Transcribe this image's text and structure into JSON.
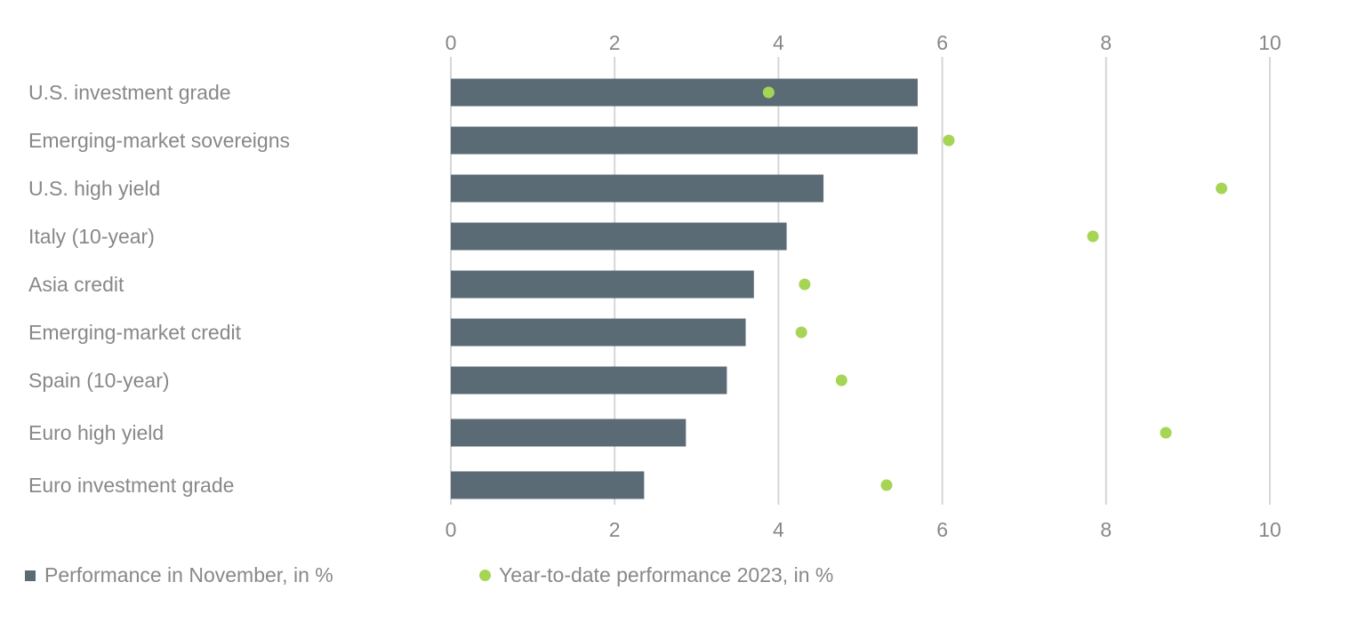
{
  "chart_data": {
    "type": "bar",
    "orientation": "horizontal",
    "categories": [
      "U.S. investment grade",
      "Emerging-market sovereigns",
      "U.S. high yield",
      "Italy (10-year)",
      "Asia credit",
      "Emerging-market credit",
      "Spain (10-year)",
      "Euro high yield",
      "Euro investment grade"
    ],
    "series": [
      {
        "name": "Performance in November, in %",
        "kind": "bar",
        "color": "#5b6b76",
        "values": [
          5.7,
          5.7,
          4.55,
          4.1,
          3.7,
          3.6,
          3.37,
          2.87,
          2.36
        ]
      },
      {
        "name": "Year-to-date performance 2023, in %",
        "kind": "dot",
        "color": "#a6d455",
        "values": [
          3.88,
          6.08,
          9.41,
          7.84,
          4.32,
          4.28,
          4.77,
          8.73,
          5.32
        ]
      }
    ],
    "xlim": [
      0,
      10
    ],
    "xticks": [
      "0",
      "2",
      "4",
      "6",
      "8",
      "10"
    ],
    "tick_positions": [
      0,
      2,
      4,
      6,
      8,
      10
    ],
    "axis_labels_top_and_bottom": true,
    "grid": "vertical",
    "grid_color": "#d6d6d6",
    "label_color": "#888888",
    "legend_position": "bottom-left",
    "title": "",
    "xlabel": "",
    "ylabel": ""
  },
  "legend": {
    "bar_label": "Performance in November, in %",
    "dot_label": "Year-to-date performance 2023, in %"
  }
}
